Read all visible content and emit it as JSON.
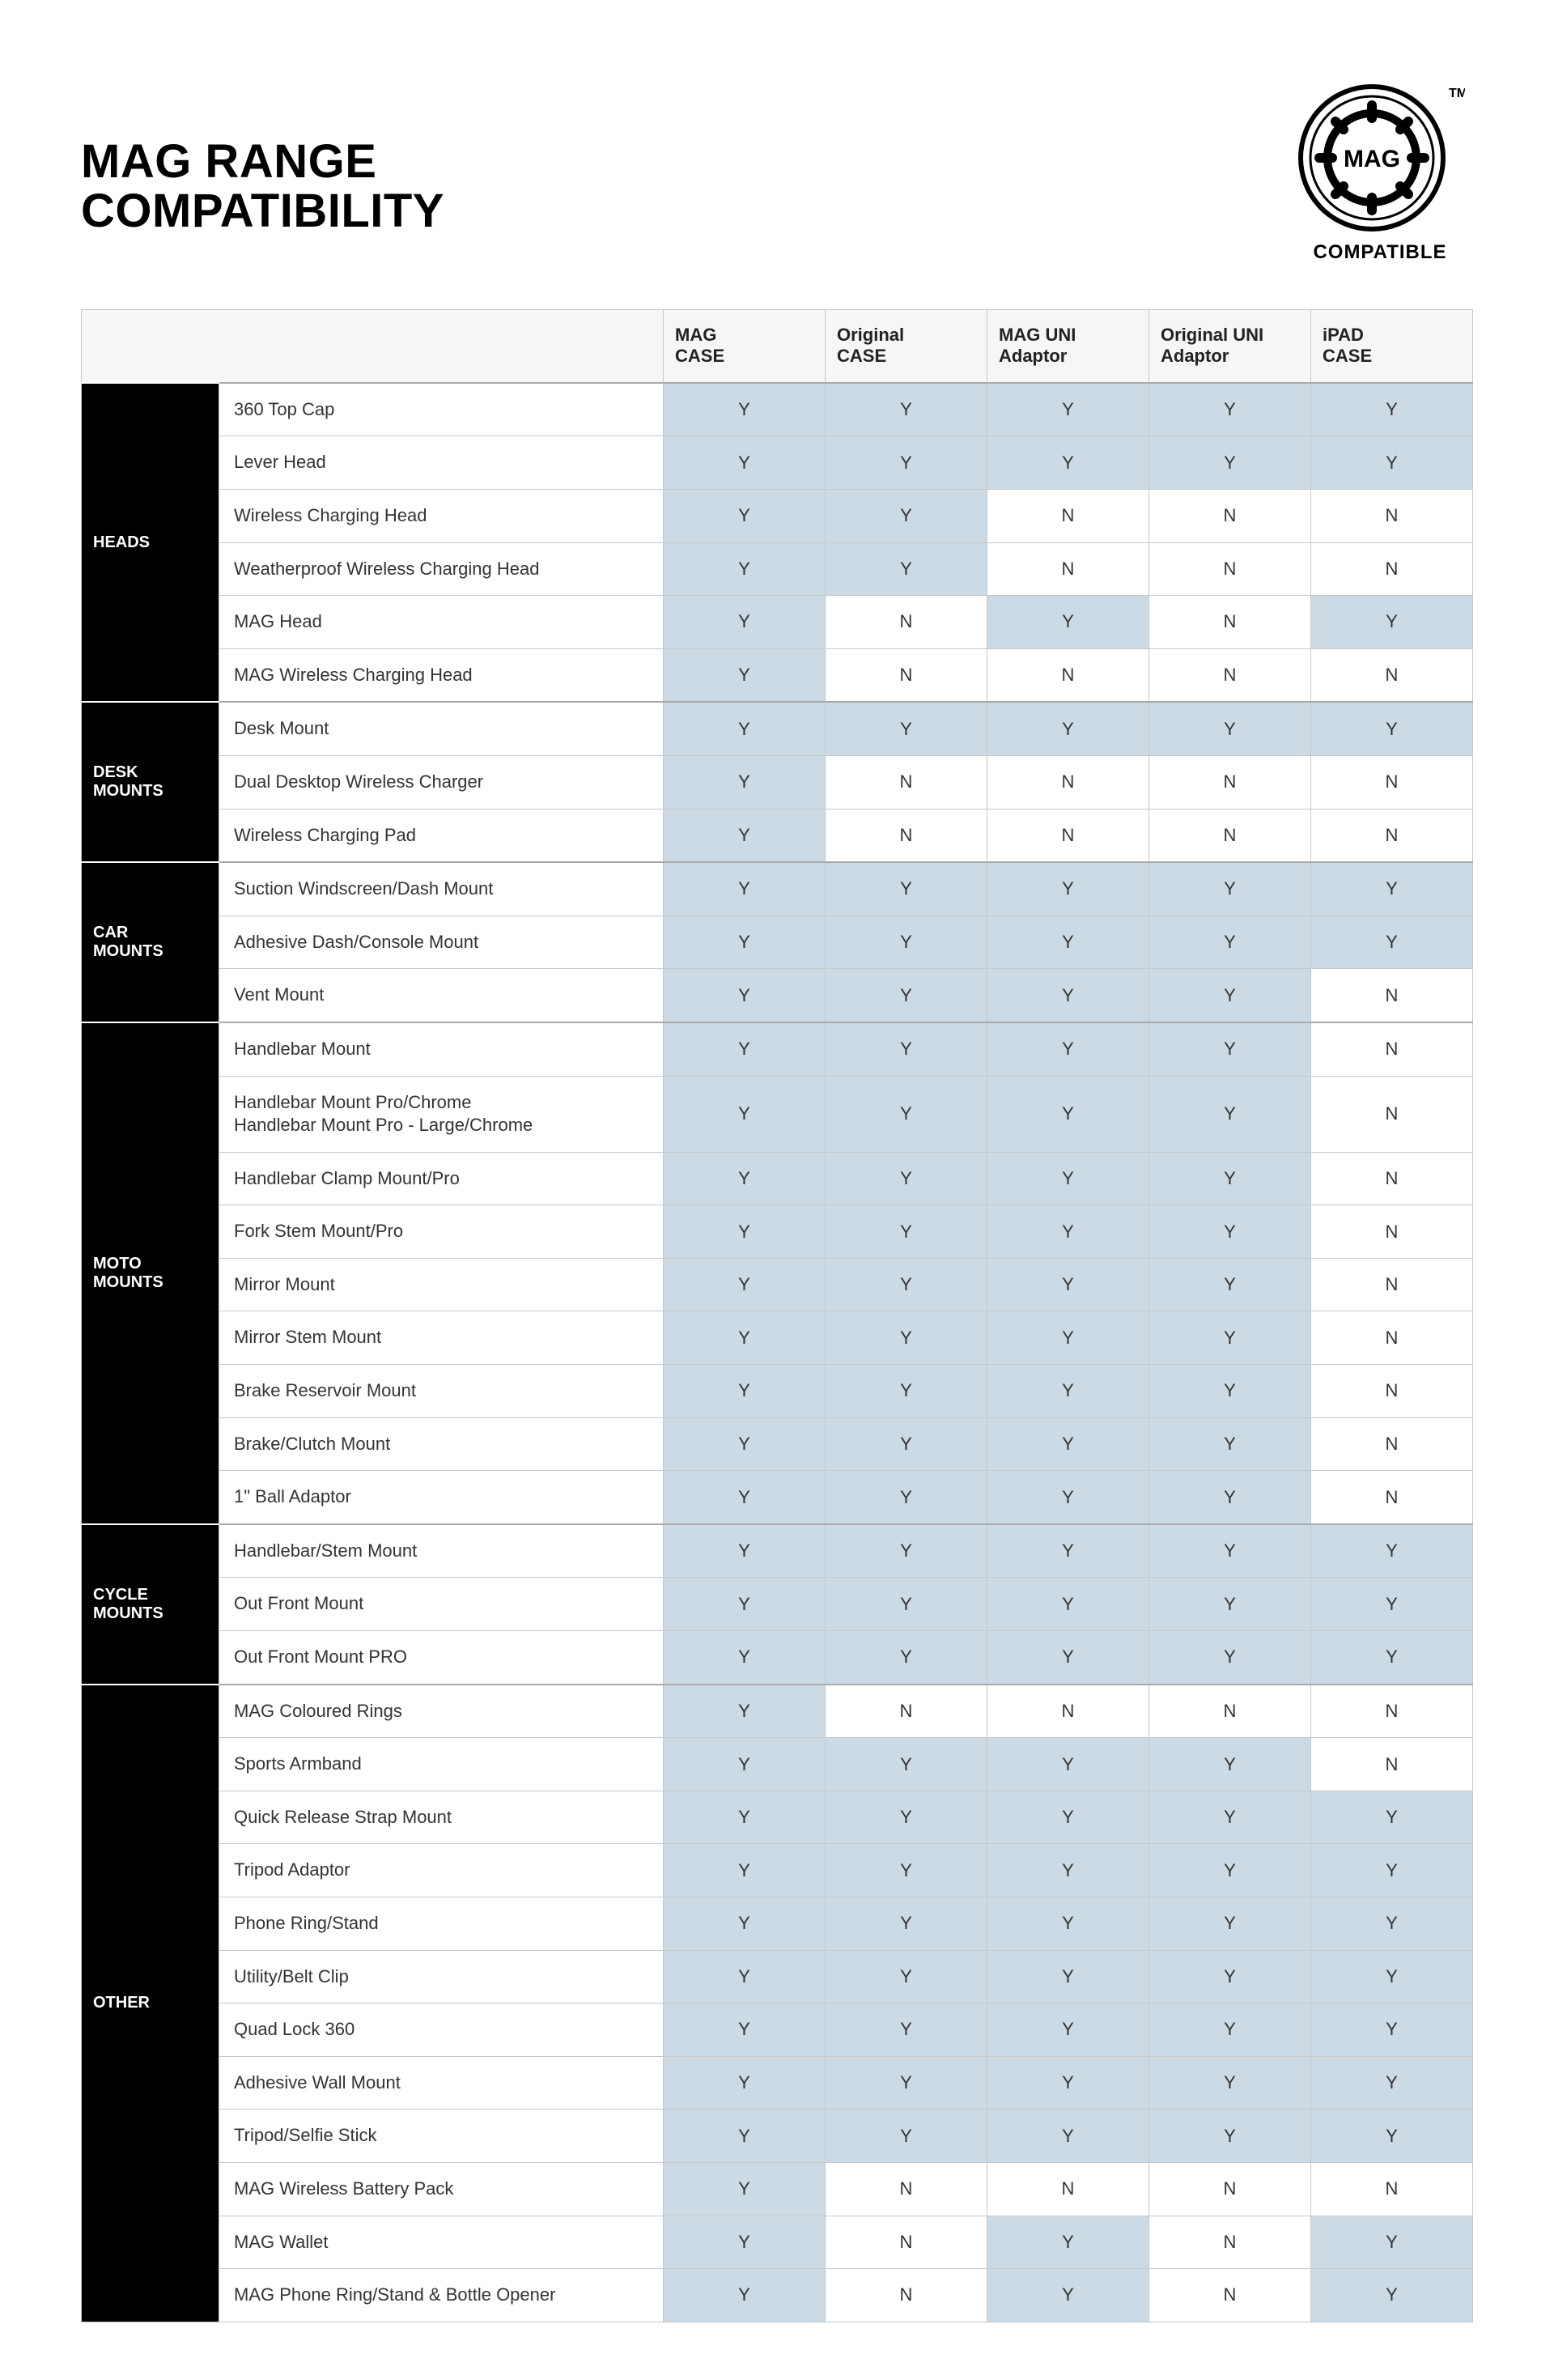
{
  "title_line1": "MAG RANGE",
  "title_line2": "COMPATIBILITY",
  "logo_text": "MAG",
  "logo_caption": "COMPATIBLE",
  "tm": "TM",
  "columns": [
    {
      "l1": "MAG",
      "l2": "CASE"
    },
    {
      "l1": "Original",
      "l2": "CASE"
    },
    {
      "l1": "MAG UNI",
      "l2": "Adaptor"
    },
    {
      "l1": "Original UNI",
      "l2": "Adaptor"
    },
    {
      "l1": "iPAD",
      "l2": "CASE"
    }
  ],
  "groups": [
    {
      "name": "HEADS",
      "rows": [
        {
          "name": "360 Top Cap",
          "v": [
            "Y",
            "Y",
            "Y",
            "Y",
            "Y"
          ]
        },
        {
          "name": "Lever Head",
          "v": [
            "Y",
            "Y",
            "Y",
            "Y",
            "Y"
          ]
        },
        {
          "name": "Wireless Charging Head",
          "v": [
            "Y",
            "Y",
            "N",
            "N",
            "N"
          ]
        },
        {
          "name": "Weatherproof Wireless Charging Head",
          "v": [
            "Y",
            "Y",
            "N",
            "N",
            "N"
          ]
        },
        {
          "name": "MAG Head",
          "v": [
            "Y",
            "N",
            "Y",
            "N",
            "Y"
          ]
        },
        {
          "name": "MAG Wireless Charging Head",
          "v": [
            "Y",
            "N",
            "N",
            "N",
            "N"
          ]
        }
      ]
    },
    {
      "name": "DESK\nMOUNTS",
      "rows": [
        {
          "name": "Desk Mount",
          "v": [
            "Y",
            "Y",
            "Y",
            "Y",
            "Y"
          ]
        },
        {
          "name": "Dual Desktop Wireless Charger",
          "v": [
            "Y",
            "N",
            "N",
            "N",
            "N"
          ]
        },
        {
          "name": "Wireless Charging Pad",
          "v": [
            "Y",
            "N",
            "N",
            "N",
            "N"
          ]
        }
      ]
    },
    {
      "name": "CAR\nMOUNTS",
      "rows": [
        {
          "name": "Suction Windscreen/Dash Mount",
          "v": [
            "Y",
            "Y",
            "Y",
            "Y",
            "Y"
          ]
        },
        {
          "name": "Adhesive Dash/Console Mount",
          "v": [
            "Y",
            "Y",
            "Y",
            "Y",
            "Y"
          ]
        },
        {
          "name": "Vent Mount",
          "v": [
            "Y",
            "Y",
            "Y",
            "Y",
            "N"
          ]
        }
      ]
    },
    {
      "name": "MOTO\nMOUNTS",
      "rows": [
        {
          "name": "Handlebar Mount",
          "v": [
            "Y",
            "Y",
            "Y",
            "Y",
            "N"
          ]
        },
        {
          "name": "Handlebar Mount Pro/Chrome\nHandlebar Mount Pro - Large/Chrome",
          "v": [
            "Y",
            "Y",
            "Y",
            "Y",
            "N"
          ]
        },
        {
          "name": "Handlebar Clamp Mount/Pro",
          "v": [
            "Y",
            "Y",
            "Y",
            "Y",
            "N"
          ]
        },
        {
          "name": "Fork Stem Mount/Pro",
          "v": [
            "Y",
            "Y",
            "Y",
            "Y",
            "N"
          ]
        },
        {
          "name": "Mirror Mount",
          "v": [
            "Y",
            "Y",
            "Y",
            "Y",
            "N"
          ]
        },
        {
          "name": "Mirror Stem Mount",
          "v": [
            "Y",
            "Y",
            "Y",
            "Y",
            "N"
          ]
        },
        {
          "name": "Brake Reservoir Mount",
          "v": [
            "Y",
            "Y",
            "Y",
            "Y",
            "N"
          ]
        },
        {
          "name": "Brake/Clutch Mount",
          "v": [
            "Y",
            "Y",
            "Y",
            "Y",
            "N"
          ]
        },
        {
          "name": "1\" Ball Adaptor",
          "v": [
            "Y",
            "Y",
            "Y",
            "Y",
            "N"
          ]
        }
      ]
    },
    {
      "name": "CYCLE\nMOUNTS",
      "rows": [
        {
          "name": "Handlebar/Stem Mount",
          "v": [
            "Y",
            "Y",
            "Y",
            "Y",
            "Y"
          ]
        },
        {
          "name": "Out Front Mount",
          "v": [
            "Y",
            "Y",
            "Y",
            "Y",
            "Y"
          ]
        },
        {
          "name": "Out Front Mount PRO",
          "v": [
            "Y",
            "Y",
            "Y",
            "Y",
            "Y"
          ]
        }
      ]
    },
    {
      "name": "OTHER",
      "rows": [
        {
          "name": "MAG Coloured Rings",
          "v": [
            "Y",
            "N",
            "N",
            "N",
            "N"
          ]
        },
        {
          "name": "Sports Armband",
          "v": [
            "Y",
            "Y",
            "Y",
            "Y",
            "N"
          ]
        },
        {
          "name": "Quick Release Strap Mount",
          "v": [
            "Y",
            "Y",
            "Y",
            "Y",
            "Y"
          ]
        },
        {
          "name": "Tripod Adaptor",
          "v": [
            "Y",
            "Y",
            "Y",
            "Y",
            "Y"
          ]
        },
        {
          "name": "Phone Ring/Stand",
          "v": [
            "Y",
            "Y",
            "Y",
            "Y",
            "Y"
          ]
        },
        {
          "name": "Utility/Belt Clip",
          "v": [
            "Y",
            "Y",
            "Y",
            "Y",
            "Y"
          ]
        },
        {
          "name": "Quad Lock 360",
          "v": [
            "Y",
            "Y",
            "Y",
            "Y",
            "Y"
          ]
        },
        {
          "name": "Adhesive Wall Mount",
          "v": [
            "Y",
            "Y",
            "Y",
            "Y",
            "Y"
          ]
        },
        {
          "name": "Tripod/Selfie Stick",
          "v": [
            "Y",
            "Y",
            "Y",
            "Y",
            "Y"
          ]
        },
        {
          "name": "MAG Wireless Battery Pack",
          "v": [
            "Y",
            "N",
            "N",
            "N",
            "N"
          ]
        },
        {
          "name": "MAG Wallet",
          "v": [
            "Y",
            "N",
            "Y",
            "N",
            "Y"
          ]
        },
        {
          "name": "MAG Phone Ring/Stand & Bottle Opener",
          "v": [
            "Y",
            "N",
            "Y",
            "N",
            "Y"
          ]
        }
      ]
    }
  ]
}
